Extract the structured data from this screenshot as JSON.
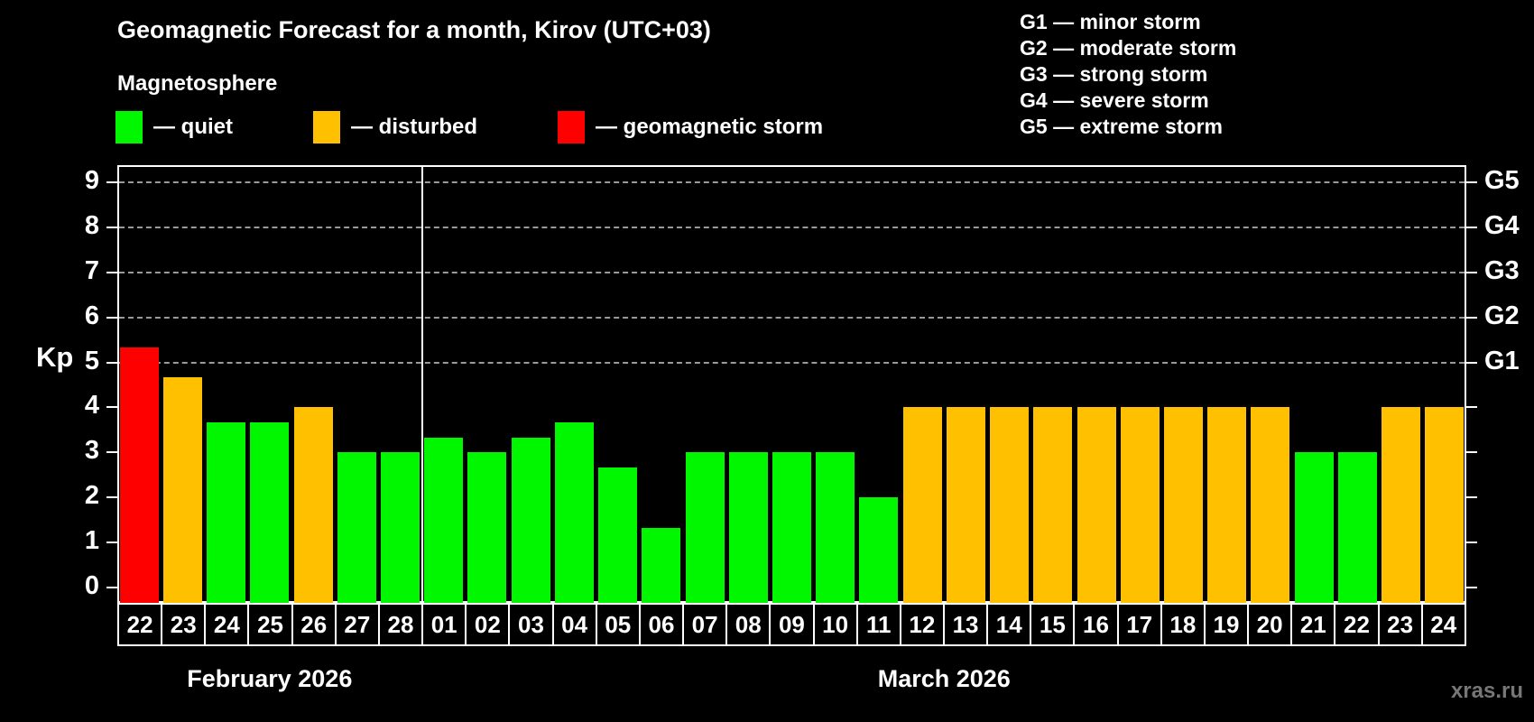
{
  "header": {
    "title": "Geomagnetic Forecast for a month, Kirov (UTC+03)",
    "subtitle": "Magnetosphere",
    "legend": [
      {
        "state": "quiet",
        "label": "— quiet"
      },
      {
        "state": "disturbed",
        "label": "— disturbed"
      },
      {
        "state": "storm",
        "label": "— geomagnetic storm"
      }
    ]
  },
  "storm_legend": [
    "G1 — minor storm",
    "G2 — moderate storm",
    "G3 — strong storm",
    "G4 — severe storm",
    "G5 — extreme storm"
  ],
  "chart_data": {
    "type": "bar",
    "ylabel": "Kp",
    "ylim": [
      0,
      9
    ],
    "yticks": [
      0,
      1,
      2,
      3,
      4,
      5,
      6,
      7,
      8,
      9
    ],
    "gridlines_at_kp": [
      5,
      6,
      7,
      8,
      9
    ],
    "right_axis": [
      {
        "kp": 5,
        "label": "G1"
      },
      {
        "kp": 6,
        "label": "G2"
      },
      {
        "kp": 7,
        "label": "G3"
      },
      {
        "kp": 8,
        "label": "G4"
      },
      {
        "kp": 9,
        "label": "G5"
      }
    ],
    "state_colors": {
      "quiet": "#00f700",
      "disturbed": "#ffc000",
      "storm": "#ff0000"
    },
    "legend_position": "top-left",
    "grid": "dashed horizontal at storm levels only",
    "months": [
      {
        "label": "February 2026",
        "days": [
          {
            "day": "22",
            "kp": 5.33,
            "state": "storm"
          },
          {
            "day": "23",
            "kp": 4.67,
            "state": "disturbed"
          },
          {
            "day": "24",
            "kp": 3.67,
            "state": "quiet"
          },
          {
            "day": "25",
            "kp": 3.67,
            "state": "quiet"
          },
          {
            "day": "26",
            "kp": 4.0,
            "state": "disturbed"
          },
          {
            "day": "27",
            "kp": 3.0,
            "state": "quiet"
          },
          {
            "day": "28",
            "kp": 3.0,
            "state": "quiet"
          }
        ]
      },
      {
        "label": "March 2026",
        "days": [
          {
            "day": "01",
            "kp": 3.33,
            "state": "quiet"
          },
          {
            "day": "02",
            "kp": 3.0,
            "state": "quiet"
          },
          {
            "day": "03",
            "kp": 3.33,
            "state": "quiet"
          },
          {
            "day": "04",
            "kp": 3.67,
            "state": "quiet"
          },
          {
            "day": "05",
            "kp": 2.67,
            "state": "quiet"
          },
          {
            "day": "06",
            "kp": 1.33,
            "state": "quiet"
          },
          {
            "day": "07",
            "kp": 3.0,
            "state": "quiet"
          },
          {
            "day": "08",
            "kp": 3.0,
            "state": "quiet"
          },
          {
            "day": "09",
            "kp": 3.0,
            "state": "quiet"
          },
          {
            "day": "10",
            "kp": 3.0,
            "state": "quiet"
          },
          {
            "day": "11",
            "kp": 2.0,
            "state": "quiet"
          },
          {
            "day": "12",
            "kp": 4.0,
            "state": "disturbed"
          },
          {
            "day": "13",
            "kp": 4.0,
            "state": "disturbed"
          },
          {
            "day": "14",
            "kp": 4.0,
            "state": "disturbed"
          },
          {
            "day": "15",
            "kp": 4.0,
            "state": "disturbed"
          },
          {
            "day": "16",
            "kp": 4.0,
            "state": "disturbed"
          },
          {
            "day": "17",
            "kp": 4.0,
            "state": "disturbed"
          },
          {
            "day": "18",
            "kp": 4.0,
            "state": "disturbed"
          },
          {
            "day": "19",
            "kp": 4.0,
            "state": "disturbed"
          },
          {
            "day": "20",
            "kp": 4.0,
            "state": "disturbed"
          },
          {
            "day": "21",
            "kp": 3.0,
            "state": "quiet"
          },
          {
            "day": "22",
            "kp": 3.0,
            "state": "quiet"
          },
          {
            "day": "23",
            "kp": 4.0,
            "state": "disturbed"
          },
          {
            "day": "24",
            "kp": 4.0,
            "state": "disturbed"
          }
        ]
      }
    ]
  },
  "watermark": "xras.ru"
}
